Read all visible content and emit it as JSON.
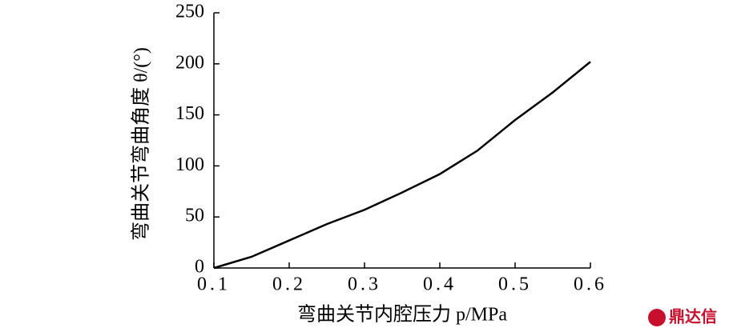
{
  "chart_data": {
    "type": "line",
    "x_label": "弯曲关节内腔压力 p/MPa",
    "y_label": "弯曲关节弯曲角度 θ/(°)",
    "x": [
      0.1,
      0.15,
      0.2,
      0.25,
      0.3,
      0.35,
      0.4,
      0.45,
      0.5,
      0.55,
      0.6
    ],
    "series": [
      {
        "color": "#000000",
        "values": [
          0,
          11,
          27,
          43,
          57,
          74,
          92,
          115,
          145,
          172,
          202
        ]
      }
    ],
    "xlim": [
      0.1,
      0.6
    ],
    "xticks": [
      0.1,
      0.2,
      0.3,
      0.4,
      0.5,
      0.6
    ],
    "ylim": [
      0,
      250
    ],
    "yticks": [
      0,
      50,
      100,
      150,
      200,
      250
    ],
    "grid": false
  },
  "watermark": "鼎达信"
}
